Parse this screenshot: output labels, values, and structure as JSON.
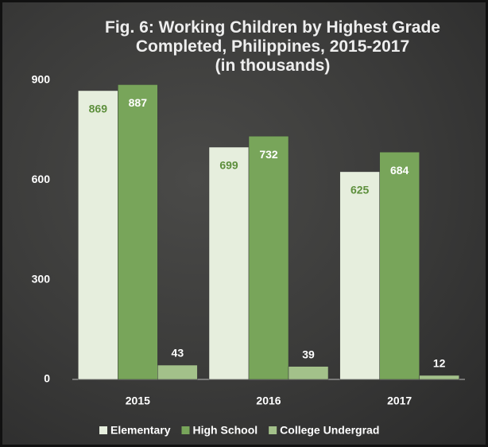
{
  "chart_data": {
    "type": "bar",
    "title": "Fig. 6:  Working Children by Highest Grade Completed, Philippines,  2015-2017",
    "subtitle": "(in thousands)",
    "categories": [
      "2015",
      "2016",
      "2017"
    ],
    "series": [
      {
        "name": "Elementary",
        "color": "#e6eedd",
        "values": [
          869,
          699,
          625
        ]
      },
      {
        "name": "High School",
        "color": "#78a55a",
        "values": [
          887,
          732,
          684
        ]
      },
      {
        "name": "College Undergrad",
        "color": "#a3c18a",
        "values": [
          43,
          39,
          12
        ]
      }
    ],
    "ylim": [
      0,
      900
    ],
    "yticks": [
      0,
      300,
      600,
      900
    ],
    "grid": false,
    "legend": "bottom"
  }
}
